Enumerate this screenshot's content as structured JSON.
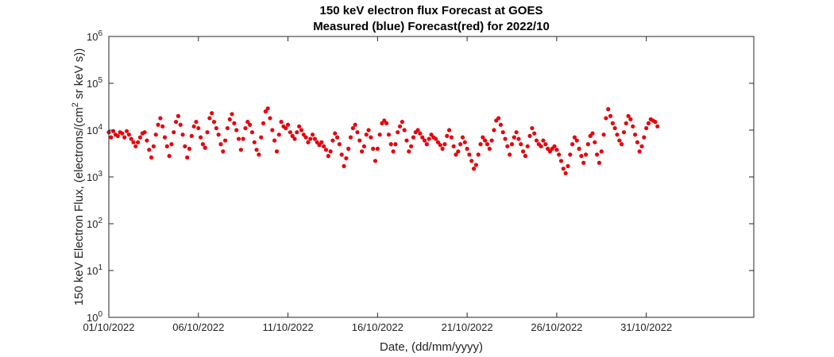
{
  "chart_data": {
    "type": "scatter",
    "title": "150 keV electron flux Forecast at GOES",
    "subtitle": "Measured (blue) Forecast(red) for 2022/10",
    "xlabel": "Date, (dd/mm/yyyy)",
    "ylabel": "150 keV Electron Flux, (electrons/(cm² sr keV s))",
    "ylabel_parts": {
      "before": "150 keV Electron Flux, (electrons/(cm",
      "sup": "2",
      "after": " sr keV s))"
    },
    "y_scale": "log",
    "ylim": [
      1,
      1000000
    ],
    "xlim": [
      "01/10/2022",
      "06/11/2022"
    ],
    "x_ticks": [
      "01/10/2022",
      "06/10/2022",
      "11/10/2022",
      "16/10/2022",
      "21/10/2022",
      "26/10/2022",
      "31/10/2022"
    ],
    "y_ticks": [
      {
        "base": "10",
        "exp": "0",
        "value": 1
      },
      {
        "base": "10",
        "exp": "1",
        "value": 10
      },
      {
        "base": "10",
        "exp": "2",
        "value": 100
      },
      {
        "base": "10",
        "exp": "3",
        "value": 1000
      },
      {
        "base": "10",
        "exp": "4",
        "value": 10000
      },
      {
        "base": "10",
        "exp": "5",
        "value": 100000
      },
      {
        "base": "10",
        "exp": "6",
        "value": 1000000
      }
    ],
    "grid": false,
    "series": [
      {
        "marker_color": "#e8000b",
        "points": [
          [
            "01/10/2022 00:00",
            9000
          ],
          [
            "01/10/2022 03:00",
            7000
          ],
          [
            "01/10/2022 06:00",
            9500
          ],
          [
            "01/10/2022 09:00",
            8000
          ],
          [
            "01/10/2022 12:00",
            7500
          ],
          [
            "01/10/2022 15:00",
            9000
          ],
          [
            "01/10/2022 18:00",
            8500
          ],
          [
            "01/10/2022 21:00",
            7000
          ],
          [
            "02/10/2022 00:00",
            9500
          ],
          [
            "02/10/2022 03:00",
            8000
          ],
          [
            "02/10/2022 06:00",
            6500
          ],
          [
            "02/10/2022 09:00",
            5500
          ],
          [
            "02/10/2022 12:00",
            4500
          ],
          [
            "02/10/2022 15:00",
            5500
          ],
          [
            "02/10/2022 18:00",
            7000
          ],
          [
            "02/10/2022 21:00",
            8500
          ],
          [
            "03/10/2022 00:00",
            9000
          ],
          [
            "03/10/2022 03:00",
            6000
          ],
          [
            "03/10/2022 06:00",
            3800
          ],
          [
            "03/10/2022 09:00",
            2600
          ],
          [
            "03/10/2022 12:00",
            4500
          ],
          [
            "03/10/2022 15:00",
            8000
          ],
          [
            "03/10/2022 18:00",
            13000
          ],
          [
            "03/10/2022 21:00",
            18000
          ],
          [
            "04/10/2022 00:00",
            12000
          ],
          [
            "04/10/2022 03:00",
            7000
          ],
          [
            "04/10/2022 06:00",
            4500
          ],
          [
            "04/10/2022 09:00",
            2800
          ],
          [
            "04/10/2022 12:00",
            5000
          ],
          [
            "04/10/2022 15:00",
            9000
          ],
          [
            "04/10/2022 18:00",
            15000
          ],
          [
            "04/10/2022 21:00",
            20000
          ],
          [
            "05/10/2022 00:00",
            13000
          ],
          [
            "05/10/2022 03:00",
            8000
          ],
          [
            "05/10/2022 06:00",
            4500
          ],
          [
            "05/10/2022 09:00",
            2600
          ],
          [
            "05/10/2022 12:00",
            4000
          ],
          [
            "05/10/2022 15:00",
            7500
          ],
          [
            "05/10/2022 18:00",
            12000
          ],
          [
            "05/10/2022 21:00",
            15000
          ],
          [
            "06/10/2022 00:00",
            11000
          ],
          [
            "06/10/2022 03:00",
            7000
          ],
          [
            "06/10/2022 06:00",
            5000
          ],
          [
            "06/10/2022 09:00",
            4200
          ],
          [
            "06/10/2022 12:00",
            9000
          ],
          [
            "06/10/2022 15:00",
            18000
          ],
          [
            "06/10/2022 18:00",
            23000
          ],
          [
            "06/10/2022 21:00",
            15000
          ],
          [
            "07/10/2022 00:00",
            11000
          ],
          [
            "07/10/2022 03:00",
            8000
          ],
          [
            "07/10/2022 06:00",
            5000
          ],
          [
            "07/10/2022 09:00",
            3500
          ],
          [
            "07/10/2022 12:00",
            6000
          ],
          [
            "07/10/2022 15:00",
            11000
          ],
          [
            "07/10/2022 18:00",
            17000
          ],
          [
            "07/10/2022 21:00",
            22000
          ],
          [
            "08/10/2022 00:00",
            14000
          ],
          [
            "08/10/2022 03:00",
            10000
          ],
          [
            "08/10/2022 06:00",
            6500
          ],
          [
            "08/10/2022 09:00",
            3800
          ],
          [
            "08/10/2022 12:00",
            6500
          ],
          [
            "08/10/2022 15:00",
            11000
          ],
          [
            "08/10/2022 18:00",
            15000
          ],
          [
            "08/10/2022 21:00",
            13000
          ],
          [
            "09/10/2022 00:00",
            9000
          ],
          [
            "09/10/2022 03:00",
            5500
          ],
          [
            "09/10/2022 06:00",
            3800
          ],
          [
            "09/10/2022 09:00",
            3000
          ],
          [
            "09/10/2022 12:00",
            7000
          ],
          [
            "09/10/2022 15:00",
            14000
          ],
          [
            "09/10/2022 18:00",
            25000
          ],
          [
            "09/10/2022 21:00",
            29000
          ],
          [
            "10/10/2022 00:00",
            18000
          ],
          [
            "10/10/2022 03:00",
            10000
          ],
          [
            "10/10/2022 06:00",
            6000
          ],
          [
            "10/10/2022 09:00",
            3500
          ],
          [
            "10/10/2022 12:00",
            8000
          ],
          [
            "10/10/2022 15:00",
            15000
          ],
          [
            "10/10/2022 18:00",
            12000
          ],
          [
            "10/10/2022 21:00",
            11000
          ],
          [
            "11/10/2022 00:00",
            13000
          ],
          [
            "11/10/2022 03:00",
            9000
          ],
          [
            "11/10/2022 06:00",
            7500
          ],
          [
            "11/10/2022 09:00",
            6500
          ],
          [
            "11/10/2022 12:00",
            9000
          ],
          [
            "11/10/2022 15:00",
            12000
          ],
          [
            "11/10/2022 18:00",
            10000
          ],
          [
            "11/10/2022 21:00",
            8000
          ],
          [
            "12/10/2022 00:00",
            7000
          ],
          [
            "12/10/2022 03:00",
            5500
          ],
          [
            "12/10/2022 06:00",
            6500
          ],
          [
            "12/10/2022 09:00",
            8000
          ],
          [
            "12/10/2022 12:00",
            6500
          ],
          [
            "12/10/2022 15:00",
            5500
          ],
          [
            "12/10/2022 18:00",
            4800
          ],
          [
            "12/10/2022 21:00",
            5500
          ],
          [
            "13/10/2022 00:00",
            4500
          ],
          [
            "13/10/2022 03:00",
            3800
          ],
          [
            "13/10/2022 06:00",
            2800
          ],
          [
            "13/10/2022 09:00",
            3500
          ],
          [
            "13/10/2022 12:00",
            6000
          ],
          [
            "13/10/2022 15:00",
            8500
          ],
          [
            "13/10/2022 18:00",
            7000
          ],
          [
            "13/10/2022 21:00",
            5000
          ],
          [
            "14/10/2022 00:00",
            3000
          ],
          [
            "14/10/2022 03:00",
            1700
          ],
          [
            "14/10/2022 06:00",
            2500
          ],
          [
            "14/10/2022 09:00",
            4000
          ],
          [
            "14/10/2022 12:00",
            7000
          ],
          [
            "14/10/2022 15:00",
            11000
          ],
          [
            "14/10/2022 18:00",
            13000
          ],
          [
            "14/10/2022 21:00",
            9000
          ],
          [
            "15/10/2022 00:00",
            6000
          ],
          [
            "15/10/2022 03:00",
            3500
          ],
          [
            "15/10/2022 06:00",
            4500
          ],
          [
            "15/10/2022 09:00",
            8000
          ],
          [
            "15/10/2022 12:00",
            10000
          ],
          [
            "15/10/2022 15:00",
            7000
          ],
          [
            "15/10/2022 18:00",
            4000
          ],
          [
            "15/10/2022 21:00",
            2200
          ],
          [
            "16/10/2022 00:00",
            4000
          ],
          [
            "16/10/2022 03:00",
            8000
          ],
          [
            "16/10/2022 06:00",
            14000
          ],
          [
            "16/10/2022 09:00",
            16000
          ],
          [
            "16/10/2022 12:00",
            14000
          ],
          [
            "16/10/2022 15:00",
            8000
          ],
          [
            "16/10/2022 18:00",
            5000
          ],
          [
            "16/10/2022 21:00",
            3500
          ],
          [
            "17/10/2022 00:00",
            5000
          ],
          [
            "17/10/2022 03:00",
            9000
          ],
          [
            "17/10/2022 06:00",
            12000
          ],
          [
            "17/10/2022 09:00",
            15000
          ],
          [
            "17/10/2022 12:00",
            10000
          ],
          [
            "17/10/2022 15:00",
            6000
          ],
          [
            "17/10/2022 18:00",
            3500
          ],
          [
            "17/10/2022 21:00",
            4500
          ],
          [
            "18/10/2022 00:00",
            7000
          ],
          [
            "18/10/2022 03:00",
            9000
          ],
          [
            "18/10/2022 06:00",
            10000
          ],
          [
            "18/10/2022 09:00",
            8500
          ],
          [
            "18/10/2022 12:00",
            7000
          ],
          [
            "18/10/2022 15:00",
            6000
          ],
          [
            "18/10/2022 18:00",
            5000
          ],
          [
            "18/10/2022 21:00",
            6500
          ],
          [
            "19/10/2022 00:00",
            8000
          ],
          [
            "19/10/2022 03:00",
            7000
          ],
          [
            "19/10/2022 06:00",
            6500
          ],
          [
            "19/10/2022 09:00",
            5500
          ],
          [
            "19/10/2022 12:00",
            4800
          ],
          [
            "19/10/2022 15:00",
            4000
          ],
          [
            "19/10/2022 18:00",
            5000
          ],
          [
            "19/10/2022 21:00",
            7500
          ],
          [
            "20/10/2022 00:00",
            10000
          ],
          [
            "20/10/2022 03:00",
            7000
          ],
          [
            "20/10/2022 06:00",
            4500
          ],
          [
            "20/10/2022 09:00",
            3000
          ],
          [
            "20/10/2022 12:00",
            3500
          ],
          [
            "20/10/2022 15:00",
            5000
          ],
          [
            "20/10/2022 18:00",
            7000
          ],
          [
            "20/10/2022 21:00",
            5500
          ],
          [
            "21/10/2022 00:00",
            4000
          ],
          [
            "21/10/2022 03:00",
            3000
          ],
          [
            "21/10/2022 06:00",
            2200
          ],
          [
            "21/10/2022 09:00",
            1500
          ],
          [
            "21/10/2022 12:00",
            1800
          ],
          [
            "21/10/2022 15:00",
            3000
          ],
          [
            "21/10/2022 18:00",
            5000
          ],
          [
            "21/10/2022 21:00",
            7000
          ],
          [
            "22/10/2022 00:00",
            6000
          ],
          [
            "22/10/2022 03:00",
            5000
          ],
          [
            "22/10/2022 06:00",
            4000
          ],
          [
            "22/10/2022 09:00",
            6000
          ],
          [
            "22/10/2022 12:00",
            10000
          ],
          [
            "22/10/2022 15:00",
            16000
          ],
          [
            "22/10/2022 18:00",
            18000
          ],
          [
            "22/10/2022 21:00",
            13000
          ],
          [
            "23/10/2022 00:00",
            9000
          ],
          [
            "23/10/2022 03:00",
            6500
          ],
          [
            "23/10/2022 06:00",
            4500
          ],
          [
            "23/10/2022 09:00",
            3000
          ],
          [
            "23/10/2022 12:00",
            5000
          ],
          [
            "23/10/2022 15:00",
            7000
          ],
          [
            "23/10/2022 18:00",
            9000
          ],
          [
            "23/10/2022 21:00",
            6500
          ],
          [
            "24/10/2022 00:00",
            5000
          ],
          [
            "24/10/2022 03:00",
            3500
          ],
          [
            "24/10/2022 06:00",
            2800
          ],
          [
            "24/10/2022 09:00",
            4500
          ],
          [
            "24/10/2022 12:00",
            7500
          ],
          [
            "24/10/2022 15:00",
            11000
          ],
          [
            "24/10/2022 18:00",
            8500
          ],
          [
            "24/10/2022 21:00",
            6000
          ],
          [
            "25/10/2022 00:00",
            5000
          ],
          [
            "25/10/2022 03:00",
            4500
          ],
          [
            "25/10/2022 06:00",
            6000
          ],
          [
            "25/10/2022 09:00",
            5000
          ],
          [
            "25/10/2022 12:00",
            4000
          ],
          [
            "25/10/2022 15:00",
            3500
          ],
          [
            "25/10/2022 18:00",
            4000
          ],
          [
            "25/10/2022 21:00",
            4500
          ],
          [
            "26/10/2022 00:00",
            3800
          ],
          [
            "26/10/2022 03:00",
            3000
          ],
          [
            "26/10/2022 06:00",
            2200
          ],
          [
            "26/10/2022 09:00",
            1500
          ],
          [
            "26/10/2022 12:00",
            1200
          ],
          [
            "26/10/2022 15:00",
            1700
          ],
          [
            "26/10/2022 18:00",
            3000
          ],
          [
            "26/10/2022 21:00",
            5000
          ],
          [
            "27/10/2022 00:00",
            7000
          ],
          [
            "27/10/2022 03:00",
            6000
          ],
          [
            "27/10/2022 06:00",
            4000
          ],
          [
            "27/10/2022 09:00",
            2800
          ],
          [
            "27/10/2022 12:00",
            2000
          ],
          [
            "27/10/2022 15:00",
            3000
          ],
          [
            "27/10/2022 18:00",
            5000
          ],
          [
            "27/10/2022 21:00",
            7500
          ],
          [
            "28/10/2022 00:00",
            8500
          ],
          [
            "28/10/2022 03:00",
            5500
          ],
          [
            "28/10/2022 06:00",
            3000
          ],
          [
            "28/10/2022 09:00",
            2000
          ],
          [
            "28/10/2022 12:00",
            3500
          ],
          [
            "28/10/2022 15:00",
            8000
          ],
          [
            "28/10/2022 18:00",
            18000
          ],
          [
            "28/10/2022 21:00",
            28000
          ],
          [
            "29/10/2022 00:00",
            20000
          ],
          [
            "29/10/2022 03:00",
            14000
          ],
          [
            "29/10/2022 06:00",
            11000
          ],
          [
            "29/10/2022 09:00",
            8000
          ],
          [
            "29/10/2022 12:00",
            6000
          ],
          [
            "29/10/2022 15:00",
            5000
          ],
          [
            "29/10/2022 18:00",
            9000
          ],
          [
            "29/10/2022 21:00",
            14000
          ],
          [
            "30/10/2022 00:00",
            20000
          ],
          [
            "30/10/2022 03:00",
            17000
          ],
          [
            "30/10/2022 06:00",
            12000
          ],
          [
            "30/10/2022 09:00",
            8000
          ],
          [
            "30/10/2022 12:00",
            5500
          ],
          [
            "30/10/2022 15:00",
            3500
          ],
          [
            "30/10/2022 18:00",
            4500
          ],
          [
            "30/10/2022 21:00",
            7000
          ],
          [
            "31/10/2022 00:00",
            11000
          ],
          [
            "31/10/2022 03:00",
            14000
          ],
          [
            "31/10/2022 06:00",
            17000
          ],
          [
            "31/10/2022 09:00",
            16000
          ],
          [
            "31/10/2022 12:00",
            15000
          ],
          [
            "31/10/2022 15:00",
            12000
          ]
        ]
      }
    ]
  }
}
